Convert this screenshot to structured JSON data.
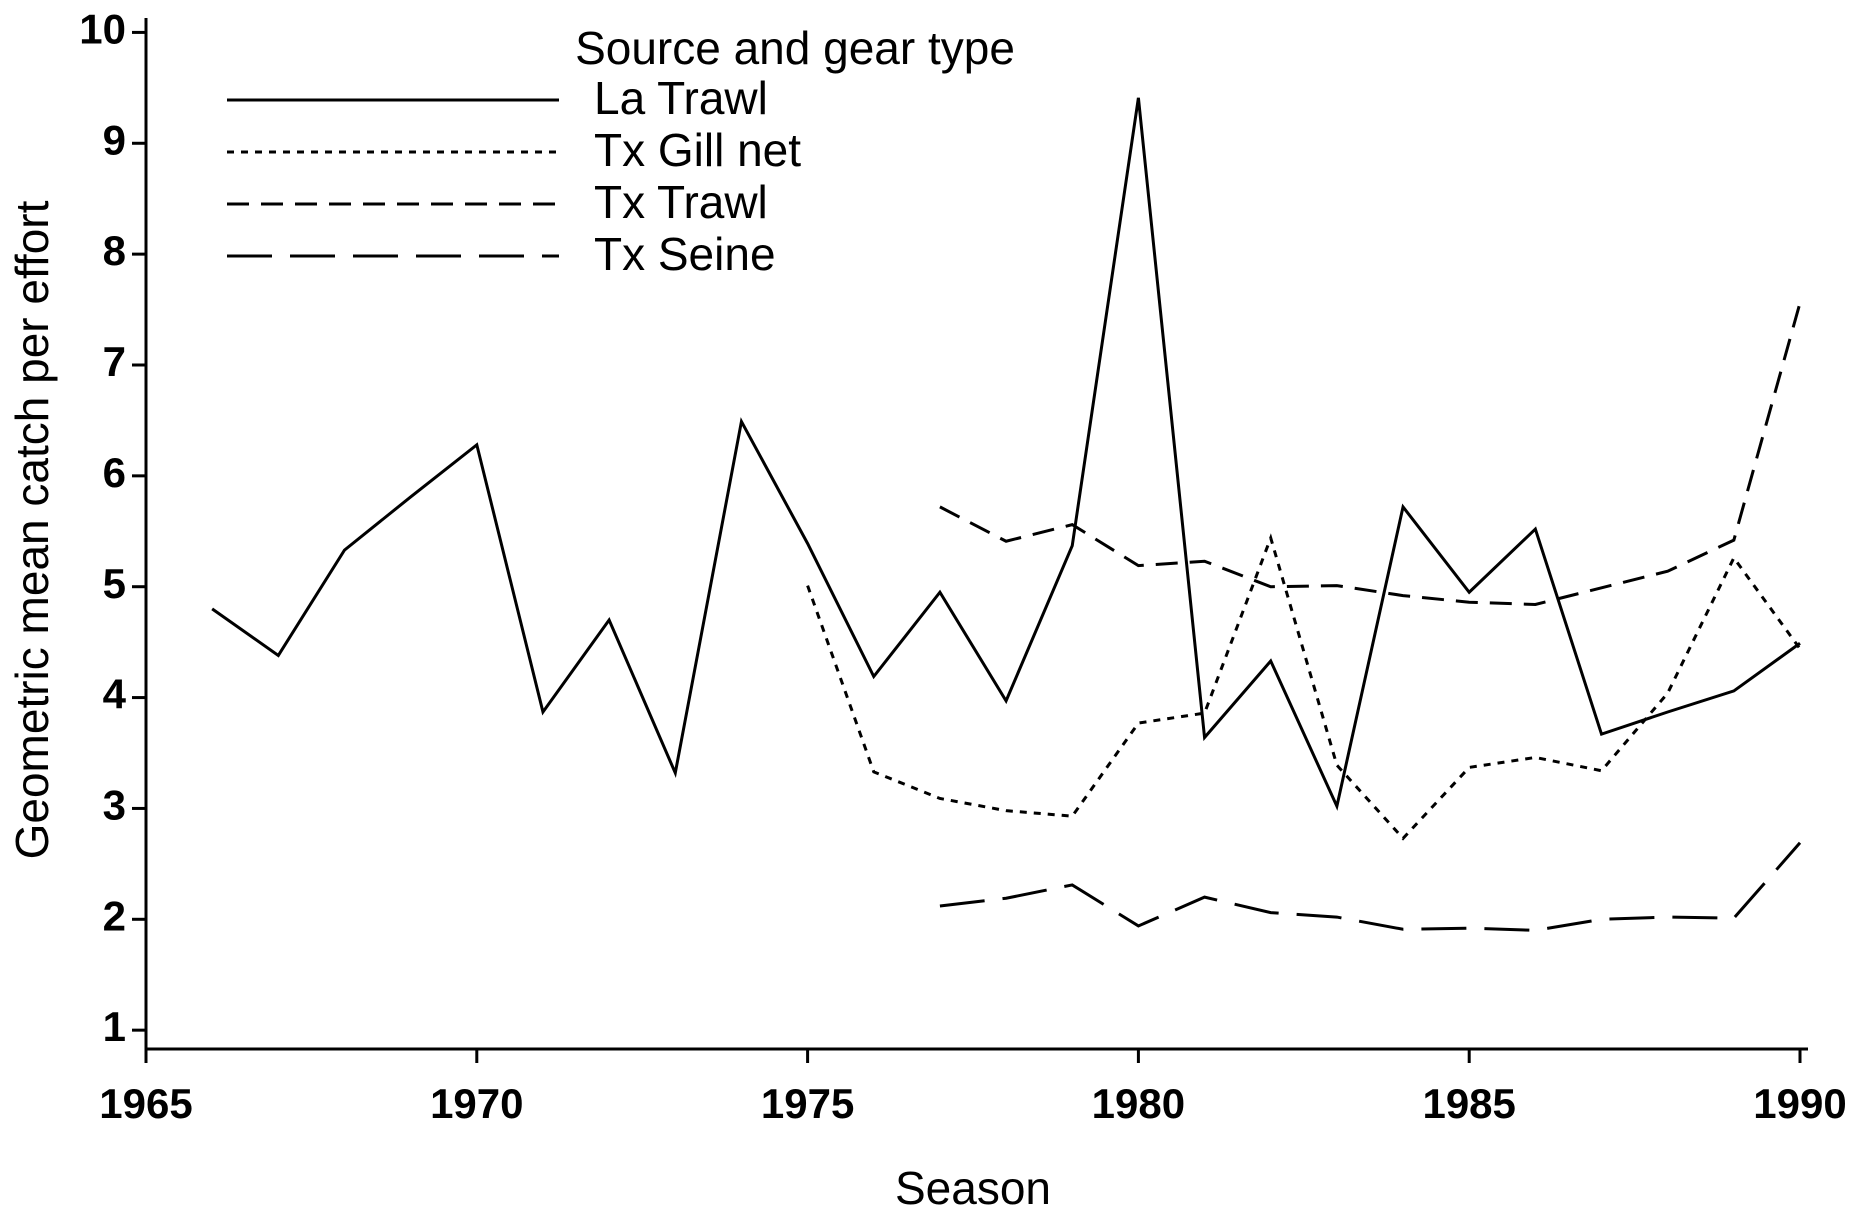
{
  "chart_data": {
    "type": "line",
    "x_label": "Season",
    "y_label": "Geometric mean catch per effort",
    "legend_title": "Source and gear type",
    "x": [
      1966,
      1967,
      1968,
      1969,
      1970,
      1971,
      1972,
      1973,
      1974,
      1975,
      1976,
      1977,
      1978,
      1979,
      1980,
      1981,
      1982,
      1983,
      1984,
      1985,
      1986,
      1987,
      1988,
      1989,
      1990
    ],
    "series": [
      {
        "name": "La Trawl",
        "color": "#000000",
        "style": "solid",
        "values": [
          4.8,
          4.38,
          5.33,
          5.81,
          6.28,
          3.87,
          4.7,
          3.32,
          6.49,
          5.39,
          4.19,
          4.95,
          3.97,
          5.37,
          9.41,
          3.64,
          4.33,
          3.02,
          5.72,
          4.95,
          5.52,
          3.67,
          3.87,
          4.06,
          4.49
        ]
      },
      {
        "name": "Tx Gill net",
        "color": "#000000",
        "style": "dotted",
        "values": [
          null,
          null,
          null,
          null,
          null,
          null,
          null,
          null,
          null,
          5.01,
          3.33,
          3.09,
          2.98,
          2.93,
          3.77,
          3.86,
          5.44,
          3.39,
          2.73,
          3.37,
          3.46,
          3.34,
          4.04,
          5.26,
          4.44
        ]
      },
      {
        "name": "Tx Trawl",
        "color": "#000000",
        "style": "dashed",
        "values": [
          null,
          null,
          null,
          null,
          null,
          null,
          null,
          null,
          null,
          null,
          null,
          5.72,
          5.41,
          5.56,
          5.19,
          5.23,
          5.0,
          5.01,
          4.92,
          4.86,
          4.84,
          4.99,
          5.14,
          5.42,
          7.56
        ]
      },
      {
        "name": "Tx Seine",
        "color": "#000000",
        "style": "longdash",
        "values": [
          null,
          null,
          null,
          null,
          null,
          null,
          null,
          null,
          null,
          null,
          null,
          2.12,
          2.19,
          2.31,
          1.94,
          2.2,
          2.06,
          2.02,
          1.91,
          1.92,
          1.9,
          2.0,
          2.02,
          2.01,
          2.69
        ]
      }
    ],
    "xlim": [
      1965,
      1990
    ],
    "xticks": [
      1965,
      1970,
      1975,
      1980,
      1985,
      1990
    ],
    "ylim": [
      0.83,
      10.13
    ],
    "yticks": [
      1,
      2,
      3,
      4,
      5,
      6,
      7,
      8,
      9,
      10
    ],
    "legend_position": "upper left",
    "grid": false
  }
}
